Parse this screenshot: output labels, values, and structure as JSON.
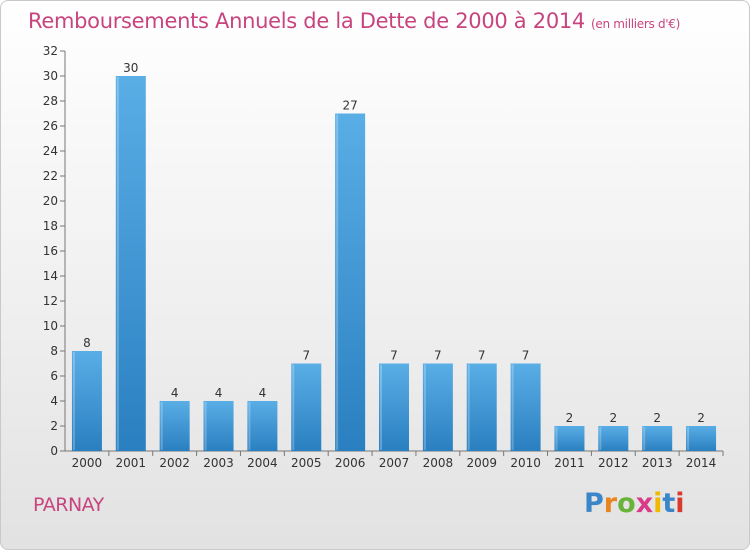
{
  "header": {
    "title": "Remboursements Annuels de la Dette de 2000 à 2014",
    "unit_note": "(en milliers d'€)"
  },
  "footer": {
    "commune": "PARNAY",
    "logo_text": "Proxiti"
  },
  "colors": {
    "title": "#c8447f",
    "bar_top": "#5aaee6",
    "bar_bottom": "#2a7fc0",
    "logo_letters": [
      "#3a86c8",
      "#e8851e",
      "#6bb23a",
      "#d93a8a",
      "#f0b800",
      "#3a86c8",
      "#d93a2e"
    ]
  },
  "chart_data": {
    "type": "bar",
    "categories": [
      "2000",
      "2001",
      "2002",
      "2003",
      "2004",
      "2005",
      "2006",
      "2007",
      "2008",
      "2009",
      "2010",
      "2011",
      "2012",
      "2013",
      "2014"
    ],
    "values": [
      8,
      30,
      4,
      4,
      4,
      7,
      27,
      7,
      7,
      7,
      7,
      2,
      2,
      2,
      2
    ],
    "title": "Remboursements Annuels de la Dette de 2000 à 2014",
    "ylim": [
      0,
      32
    ],
    "yticks": [
      0,
      2,
      4,
      6,
      8,
      10,
      12,
      14,
      16,
      18,
      20,
      22,
      24,
      26,
      28,
      30,
      32
    ],
    "grid": false,
    "data_labels": true
  }
}
